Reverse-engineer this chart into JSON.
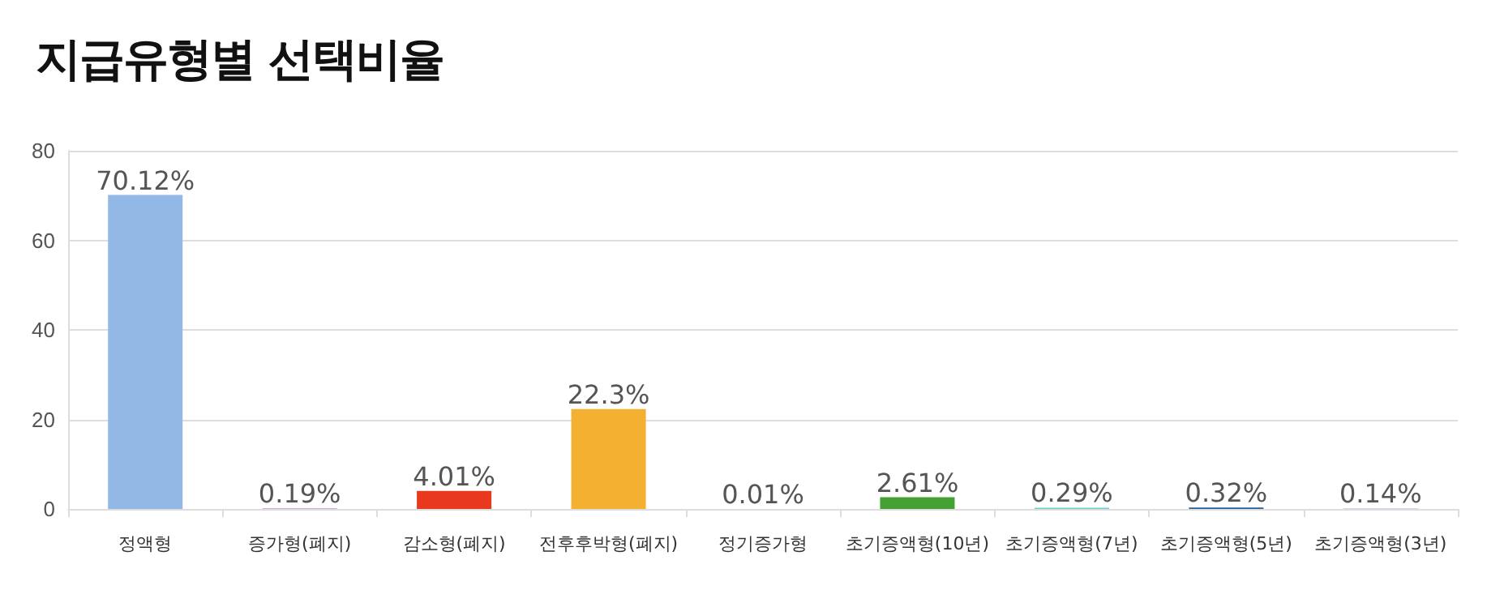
{
  "chart_data": {
    "type": "bar",
    "title": "지급유형별 선택비율",
    "categories": [
      "정액형",
      "증가형(폐지)",
      "감소형(폐지)",
      "전후후박형(폐지)",
      "정기증가형",
      "초기증액형(10년)",
      "초기증액형(7년)",
      "초기증액형(5년)",
      "초기증액형(3년)"
    ],
    "values": [
      70.12,
      0.19,
      4.01,
      22.3,
      0.01,
      2.61,
      0.29,
      0.32,
      0.14
    ],
    "colors": [
      "#92b8e6",
      "#e0a0e0",
      "#e8391f",
      "#f4b030",
      "#b0b0b0",
      "#44a032",
      "#66d0d0",
      "#2060a0",
      "#d0c0e0"
    ],
    "value_labels": [
      "70.12%",
      "0.19%",
      "4.01%",
      "22.3%",
      "0.01%",
      "2.61%",
      "0.29%",
      "0.32%",
      "0.14%"
    ],
    "ylim": [
      0,
      80
    ],
    "yticks": [
      0,
      20,
      40,
      60,
      80
    ],
    "grid": "y"
  }
}
